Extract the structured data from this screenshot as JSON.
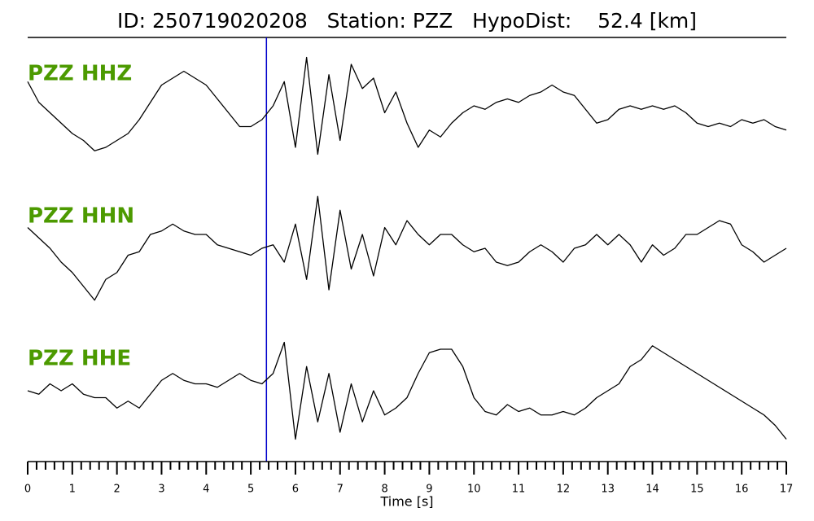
{
  "chart_data": {
    "type": "line",
    "title": "ID: 250719020208   Station: PZZ   HypoDist:    52.4 [km]",
    "xlabel": "Time [s]",
    "xlim": [
      0,
      17
    ],
    "xticks": [
      0,
      1,
      2,
      3,
      4,
      5,
      6,
      7,
      8,
      9,
      10,
      11,
      12,
      13,
      14,
      15,
      16,
      17
    ],
    "xminorticks": [
      0.2,
      0.4,
      0.6,
      0.8,
      1.2,
      1.4,
      1.6,
      1.8,
      2.2,
      2.4,
      2.6,
      2.8,
      3.2,
      3.4,
      3.6,
      3.8,
      4.2,
      4.4,
      4.6,
      4.8,
      5.2,
      5.4,
      5.6,
      5.8,
      6.2,
      6.4,
      6.6,
      6.8,
      7.2,
      7.4,
      7.6,
      7.8,
      8.2,
      8.4,
      8.6,
      8.8,
      9.2,
      9.4,
      9.6,
      9.8,
      10.2,
      10.4,
      10.6,
      10.8,
      11.2,
      11.4,
      11.6,
      11.8,
      12.2,
      12.4,
      12.6,
      12.8,
      13.2,
      13.4,
      13.6,
      13.8,
      14.2,
      14.4,
      14.6,
      14.8,
      15.2,
      15.4,
      15.6,
      15.8,
      16.2,
      16.4,
      16.6,
      16.8
    ],
    "ylim": [
      -1,
      1
    ],
    "label_color": "#4c9a00",
    "pick": {
      "x": 5.35,
      "color": "#0000cc"
    },
    "x": [
      0,
      0.25,
      0.5,
      0.75,
      1,
      1.25,
      1.5,
      1.75,
      2,
      2.25,
      2.5,
      2.75,
      3,
      3.25,
      3.5,
      3.75,
      4,
      4.25,
      4.5,
      4.75,
      5,
      5.25,
      5.5,
      5.75,
      6,
      6.25,
      6.5,
      6.75,
      7,
      7.25,
      7.5,
      7.75,
      8,
      8.25,
      8.5,
      8.75,
      9,
      9.25,
      9.5,
      9.75,
      10,
      10.25,
      10.5,
      10.75,
      11,
      11.25,
      11.5,
      11.75,
      12,
      12.25,
      12.5,
      12.75,
      13,
      13.25,
      13.5,
      13.75,
      14,
      14.25,
      14.5,
      14.75,
      15,
      15.25,
      15.5,
      15.75,
      16,
      16.25,
      16.5,
      16.75,
      17
    ],
    "series": [
      {
        "name": "PZZ HHZ",
        "color": "#000000",
        "values": [
          0.35,
          0.05,
          -0.1,
          -0.25,
          -0.4,
          -0.5,
          -0.65,
          -0.6,
          -0.5,
          -0.4,
          -0.2,
          0.05,
          0.3,
          0.4,
          0.5,
          0.4,
          0.3,
          0.1,
          -0.1,
          -0.3,
          -0.3,
          -0.2,
          0,
          0.35,
          -0.6,
          0.7,
          -0.7,
          0.45,
          -0.5,
          0.6,
          0.25,
          0.4,
          -0.1,
          0.2,
          -0.25,
          -0.6,
          -0.35,
          -0.45,
          -0.25,
          -0.1,
          0,
          -0.05,
          0.05,
          0.1,
          0.05,
          0.15,
          0.2,
          0.3,
          0.2,
          0.15,
          -0.05,
          -0.25,
          -0.2,
          -0.05,
          0,
          -0.05,
          0,
          -0.05,
          0,
          -0.1,
          -0.25,
          -0.3,
          -0.25,
          -0.3,
          -0.2,
          -0.25,
          -0.2,
          -0.3,
          -0.35
        ]
      },
      {
        "name": "PZZ HHN",
        "color": "#000000",
        "values": [
          0.3,
          0.15,
          0,
          -0.2,
          -0.35,
          -0.55,
          -0.75,
          -0.45,
          -0.35,
          -0.1,
          -0.05,
          0.2,
          0.25,
          0.35,
          0.25,
          0.2,
          0.2,
          0.05,
          0,
          -0.05,
          -0.1,
          0,
          0.05,
          -0.2,
          0.35,
          -0.45,
          0.75,
          -0.6,
          0.55,
          -0.3,
          0.2,
          -0.4,
          0.3,
          0.05,
          0.4,
          0.2,
          0.05,
          0.2,
          0.2,
          0.05,
          -0.05,
          0,
          -0.2,
          -0.25,
          -0.2,
          -0.05,
          0.05,
          -0.05,
          -0.2,
          0,
          0.05,
          0.2,
          0.05,
          0.2,
          0.05,
          -0.2,
          0.05,
          -0.1,
          0,
          0.2,
          0.2,
          0.3,
          0.4,
          0.35,
          0.05,
          -0.05,
          -0.2,
          -0.1,
          0
        ]
      },
      {
        "name": "PZZ HHE",
        "color": "#000000",
        "values": [
          0,
          -0.05,
          0.1,
          0,
          0.1,
          -0.05,
          -0.1,
          -0.1,
          -0.25,
          -0.15,
          -0.25,
          -0.05,
          0.15,
          0.25,
          0.15,
          0.1,
          0.1,
          0.05,
          0.15,
          0.25,
          0.15,
          0.1,
          0.25,
          0.7,
          -0.7,
          0.35,
          -0.45,
          0.25,
          -0.6,
          0.1,
          -0.45,
          0,
          -0.35,
          -0.25,
          -0.1,
          0.25,
          0.55,
          0.6,
          0.6,
          0.35,
          -0.1,
          -0.3,
          -0.35,
          -0.2,
          -0.3,
          -0.25,
          -0.35,
          -0.35,
          -0.3,
          -0.35,
          -0.25,
          -0.1,
          0,
          0.1,
          0.35,
          0.45,
          0.65,
          0.55,
          0.45,
          0.35,
          0.25,
          0.15,
          0.05,
          -0.05,
          -0.15,
          -0.25,
          -0.35,
          -0.5,
          -0.7
        ]
      }
    ]
  }
}
